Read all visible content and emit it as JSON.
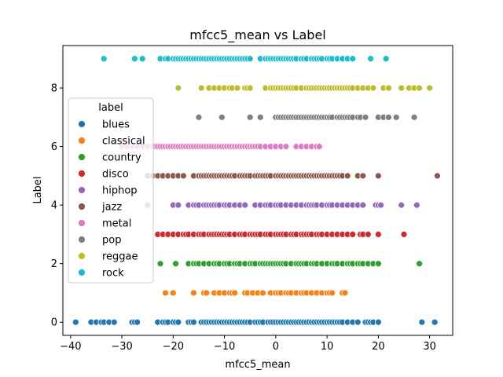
{
  "chart_data": {
    "type": "scatter",
    "title": "mfcc5_mean vs Label",
    "xlabel": "mfcc5_mean",
    "ylabel": "Label",
    "xlim": [
      -41.5,
      34.5
    ],
    "ylim": [
      -0.45,
      9.45
    ],
    "x_ticks": [
      -40,
      -30,
      -20,
      -10,
      0,
      10,
      20,
      30
    ],
    "y_ticks": [
      0,
      2,
      4,
      6,
      8
    ],
    "grid": false,
    "legend": {
      "title": "label",
      "position": "upper-left"
    },
    "series": [
      {
        "name": "blues",
        "color": "#1f77b4",
        "y": 0,
        "x": [
          -39,
          -36,
          -35,
          -34,
          -33.5,
          -32.5,
          -31.5,
          -28,
          -27.5,
          -27,
          -23,
          -22,
          -21.5,
          -21,
          -20,
          -19.5,
          -19,
          -17,
          -16.5,
          -16,
          -14.5,
          -14,
          -13.5,
          -13,
          -12.5,
          -12,
          -11.5,
          -11,
          -10.5,
          -10,
          -9.5,
          -9,
          -8.5,
          -8,
          -7.5,
          -7,
          -6.5,
          -6,
          -5.5,
          -5,
          -4,
          -3.5,
          -3,
          -2.5,
          -1.5,
          -1,
          -0.5,
          0,
          0.5,
          1,
          1.5,
          2,
          2.5,
          3,
          3.5,
          4,
          4.5,
          5,
          5.5,
          6,
          6.5,
          7,
          7.5,
          8,
          8.5,
          9,
          9.5,
          10,
          10.5,
          11,
          11.5,
          12,
          12.5,
          13,
          14,
          15,
          16,
          17.5,
          18,
          18.5,
          19,
          20,
          28.5,
          31
        ]
      },
      {
        "name": "classical",
        "color": "#ff7f0e",
        "y": 1,
        "x": [
          -21.5,
          -20,
          -16,
          -14,
          -13.5,
          -12,
          -11,
          -10,
          -9,
          -8.5,
          -8,
          -6,
          -5.5,
          -4.5,
          -3.5,
          -2.5,
          -1,
          0,
          0.5,
          1,
          2,
          2.5,
          3,
          4,
          5,
          5.5,
          6,
          7,
          8,
          9,
          10,
          10.5,
          11,
          13,
          13.5
        ]
      },
      {
        "name": "country",
        "color": "#2ca02c",
        "y": 2,
        "x": [
          -22.5,
          -19.5,
          -17,
          -16,
          -15.5,
          -15,
          -14,
          -13,
          -12,
          -11.5,
          -11,
          -10,
          -9.5,
          -9,
          -8,
          -7.5,
          -7,
          -6,
          -5,
          -4.5,
          -4,
          -3,
          -2.5,
          -2,
          -1.5,
          -1,
          -0.5,
          0,
          0.5,
          1,
          1.5,
          2,
          3,
          4,
          4.5,
          5,
          5.5,
          6,
          7,
          7.5,
          8,
          9,
          10,
          11,
          11.5,
          12,
          13,
          14,
          14.5,
          15,
          16,
          16.5,
          17,
          18,
          19,
          20,
          28
        ]
      },
      {
        "name": "disco",
        "color": "#d62728",
        "y": 3,
        "x": [
          -23,
          -22,
          -21,
          -20,
          -19,
          -18,
          -17.5,
          -17,
          -16,
          -15,
          -14.5,
          -14,
          -13,
          -12.5,
          -12,
          -11.5,
          -11,
          -10.5,
          -10,
          -9.5,
          -9,
          -8,
          -7,
          -6.5,
          -6,
          -5,
          -4.5,
          -4,
          -3.5,
          -3,
          -2,
          -1.5,
          -1,
          0,
          0.5,
          1,
          1.5,
          2,
          3,
          3.5,
          4,
          5,
          5.5,
          6,
          6.5,
          7,
          8,
          8.5,
          9,
          10,
          11,
          12,
          13,
          14,
          15,
          16.5,
          17,
          18,
          20,
          25
        ]
      },
      {
        "name": "hiphop",
        "color": "#9467bd",
        "y": 4,
        "x": [
          -25,
          -20,
          -19,
          -17,
          -16,
          -15.5,
          -15,
          -14,
          -13.5,
          -13,
          -12.5,
          -12,
          -11.5,
          -11,
          -10,
          -9.5,
          -9,
          -8,
          -7,
          -6,
          -4,
          -3,
          -2,
          -1.5,
          -1,
          0,
          0.5,
          1,
          2,
          3,
          4,
          5,
          6,
          6.5,
          7,
          7.5,
          8,
          9,
          10,
          10.5,
          11,
          12,
          13,
          14,
          15,
          16,
          17,
          19.5,
          20,
          20.5,
          24.5,
          27.5
        ]
      },
      {
        "name": "jazz",
        "color": "#8c564b",
        "y": 5,
        "x": [
          -25,
          -24,
          -23,
          -22,
          -21,
          -20,
          -19,
          -18,
          -16,
          -15,
          -14.5,
          -14,
          -13.5,
          -13,
          -12.5,
          -12,
          -11.5,
          -11,
          -10.5,
          -10,
          -9.5,
          -9,
          -8.5,
          -8,
          -7,
          -6.5,
          -6,
          -5.5,
          -5,
          -4,
          -3.5,
          -3,
          -2.5,
          -2,
          -1.5,
          -1,
          0,
          0.5,
          1,
          1.5,
          2,
          2.5,
          3,
          3.5,
          4,
          4.5,
          5,
          5.5,
          6,
          6.5,
          7,
          7.5,
          8,
          8.5,
          9,
          9.5,
          10,
          10.5,
          11,
          11.5,
          12,
          12.5,
          13,
          14,
          16,
          17,
          20,
          31.5
        ]
      },
      {
        "name": "metal",
        "color": "#e377c2",
        "y": 6,
        "x": [
          -30,
          -29,
          -28,
          -27,
          -26,
          -25,
          -24,
          -23.5,
          -23,
          -22.5,
          -22,
          -21.5,
          -21,
          -20.5,
          -20,
          -19.5,
          -19,
          -18.5,
          -18,
          -17.5,
          -17,
          -16.5,
          -16,
          -15.5,
          -15,
          -14.5,
          -14,
          -13.5,
          -13,
          -12.5,
          -12,
          -11.5,
          -11,
          -10.5,
          -10,
          -9.5,
          -9,
          -8.5,
          -8,
          -7.5,
          -7,
          -6.5,
          -6,
          -5.5,
          -5,
          -4.5,
          -4,
          -3.5,
          -3,
          -2,
          -1,
          0,
          1,
          2,
          4,
          5,
          6,
          7,
          8,
          8.5
        ]
      },
      {
        "name": "pop",
        "color": "#7f7f7f",
        "y": 7,
        "x": [
          -15,
          -10.5,
          -5,
          -3,
          0,
          0.5,
          1,
          1.5,
          2,
          2.5,
          3,
          3.5,
          4,
          4.5,
          5,
          5.5,
          6,
          6.5,
          7,
          7.5,
          8,
          8.5,
          9,
          9.5,
          10,
          10.5,
          11,
          12,
          12.5,
          13,
          13.5,
          14,
          14.5,
          15,
          16,
          16.5,
          17.5,
          20,
          21,
          22,
          23.5,
          27
        ]
      },
      {
        "name": "reggae",
        "color": "#bcbd22",
        "y": 8,
        "x": [
          -19,
          -14.5,
          -13,
          -12,
          -11,
          -10,
          -9,
          -8.5,
          -7.5,
          -6,
          -5.5,
          -5,
          -2,
          -1,
          -0.5,
          0,
          0.5,
          1,
          1.5,
          2,
          2.5,
          3,
          3.5,
          4,
          5,
          6,
          6.5,
          7,
          7.5,
          8,
          8.5,
          9,
          9.5,
          10,
          10.5,
          11,
          11.5,
          12,
          12.5,
          13,
          13.5,
          14,
          14.5,
          15,
          16,
          17,
          18,
          19,
          21,
          22,
          24.5,
          26,
          27,
          28,
          30
        ]
      },
      {
        "name": "rock",
        "color": "#17becf",
        "y": 9,
        "x": [
          -33.5,
          -27.5,
          -26,
          -22.5,
          -21.5,
          -21,
          -20,
          -19.5,
          -19,
          -18.5,
          -18,
          -17.5,
          -17,
          -16.5,
          -16,
          -15.5,
          -15,
          -14.5,
          -14,
          -13.5,
          -13,
          -12.5,
          -12,
          -11.5,
          -11,
          -10.5,
          -10,
          -9.5,
          -9,
          -8.5,
          -8,
          -7.5,
          -7,
          -6.5,
          -6,
          -5.5,
          -5,
          -3,
          -2,
          -1.5,
          -1,
          -0.5,
          0,
          0.5,
          1,
          1.5,
          2,
          2.5,
          3,
          3.5,
          4,
          5,
          5.5,
          6,
          7,
          7.5,
          8,
          8.5,
          9,
          10,
          10.5,
          11,
          12,
          13,
          14,
          15,
          18.5,
          21.5
        ]
      }
    ]
  }
}
